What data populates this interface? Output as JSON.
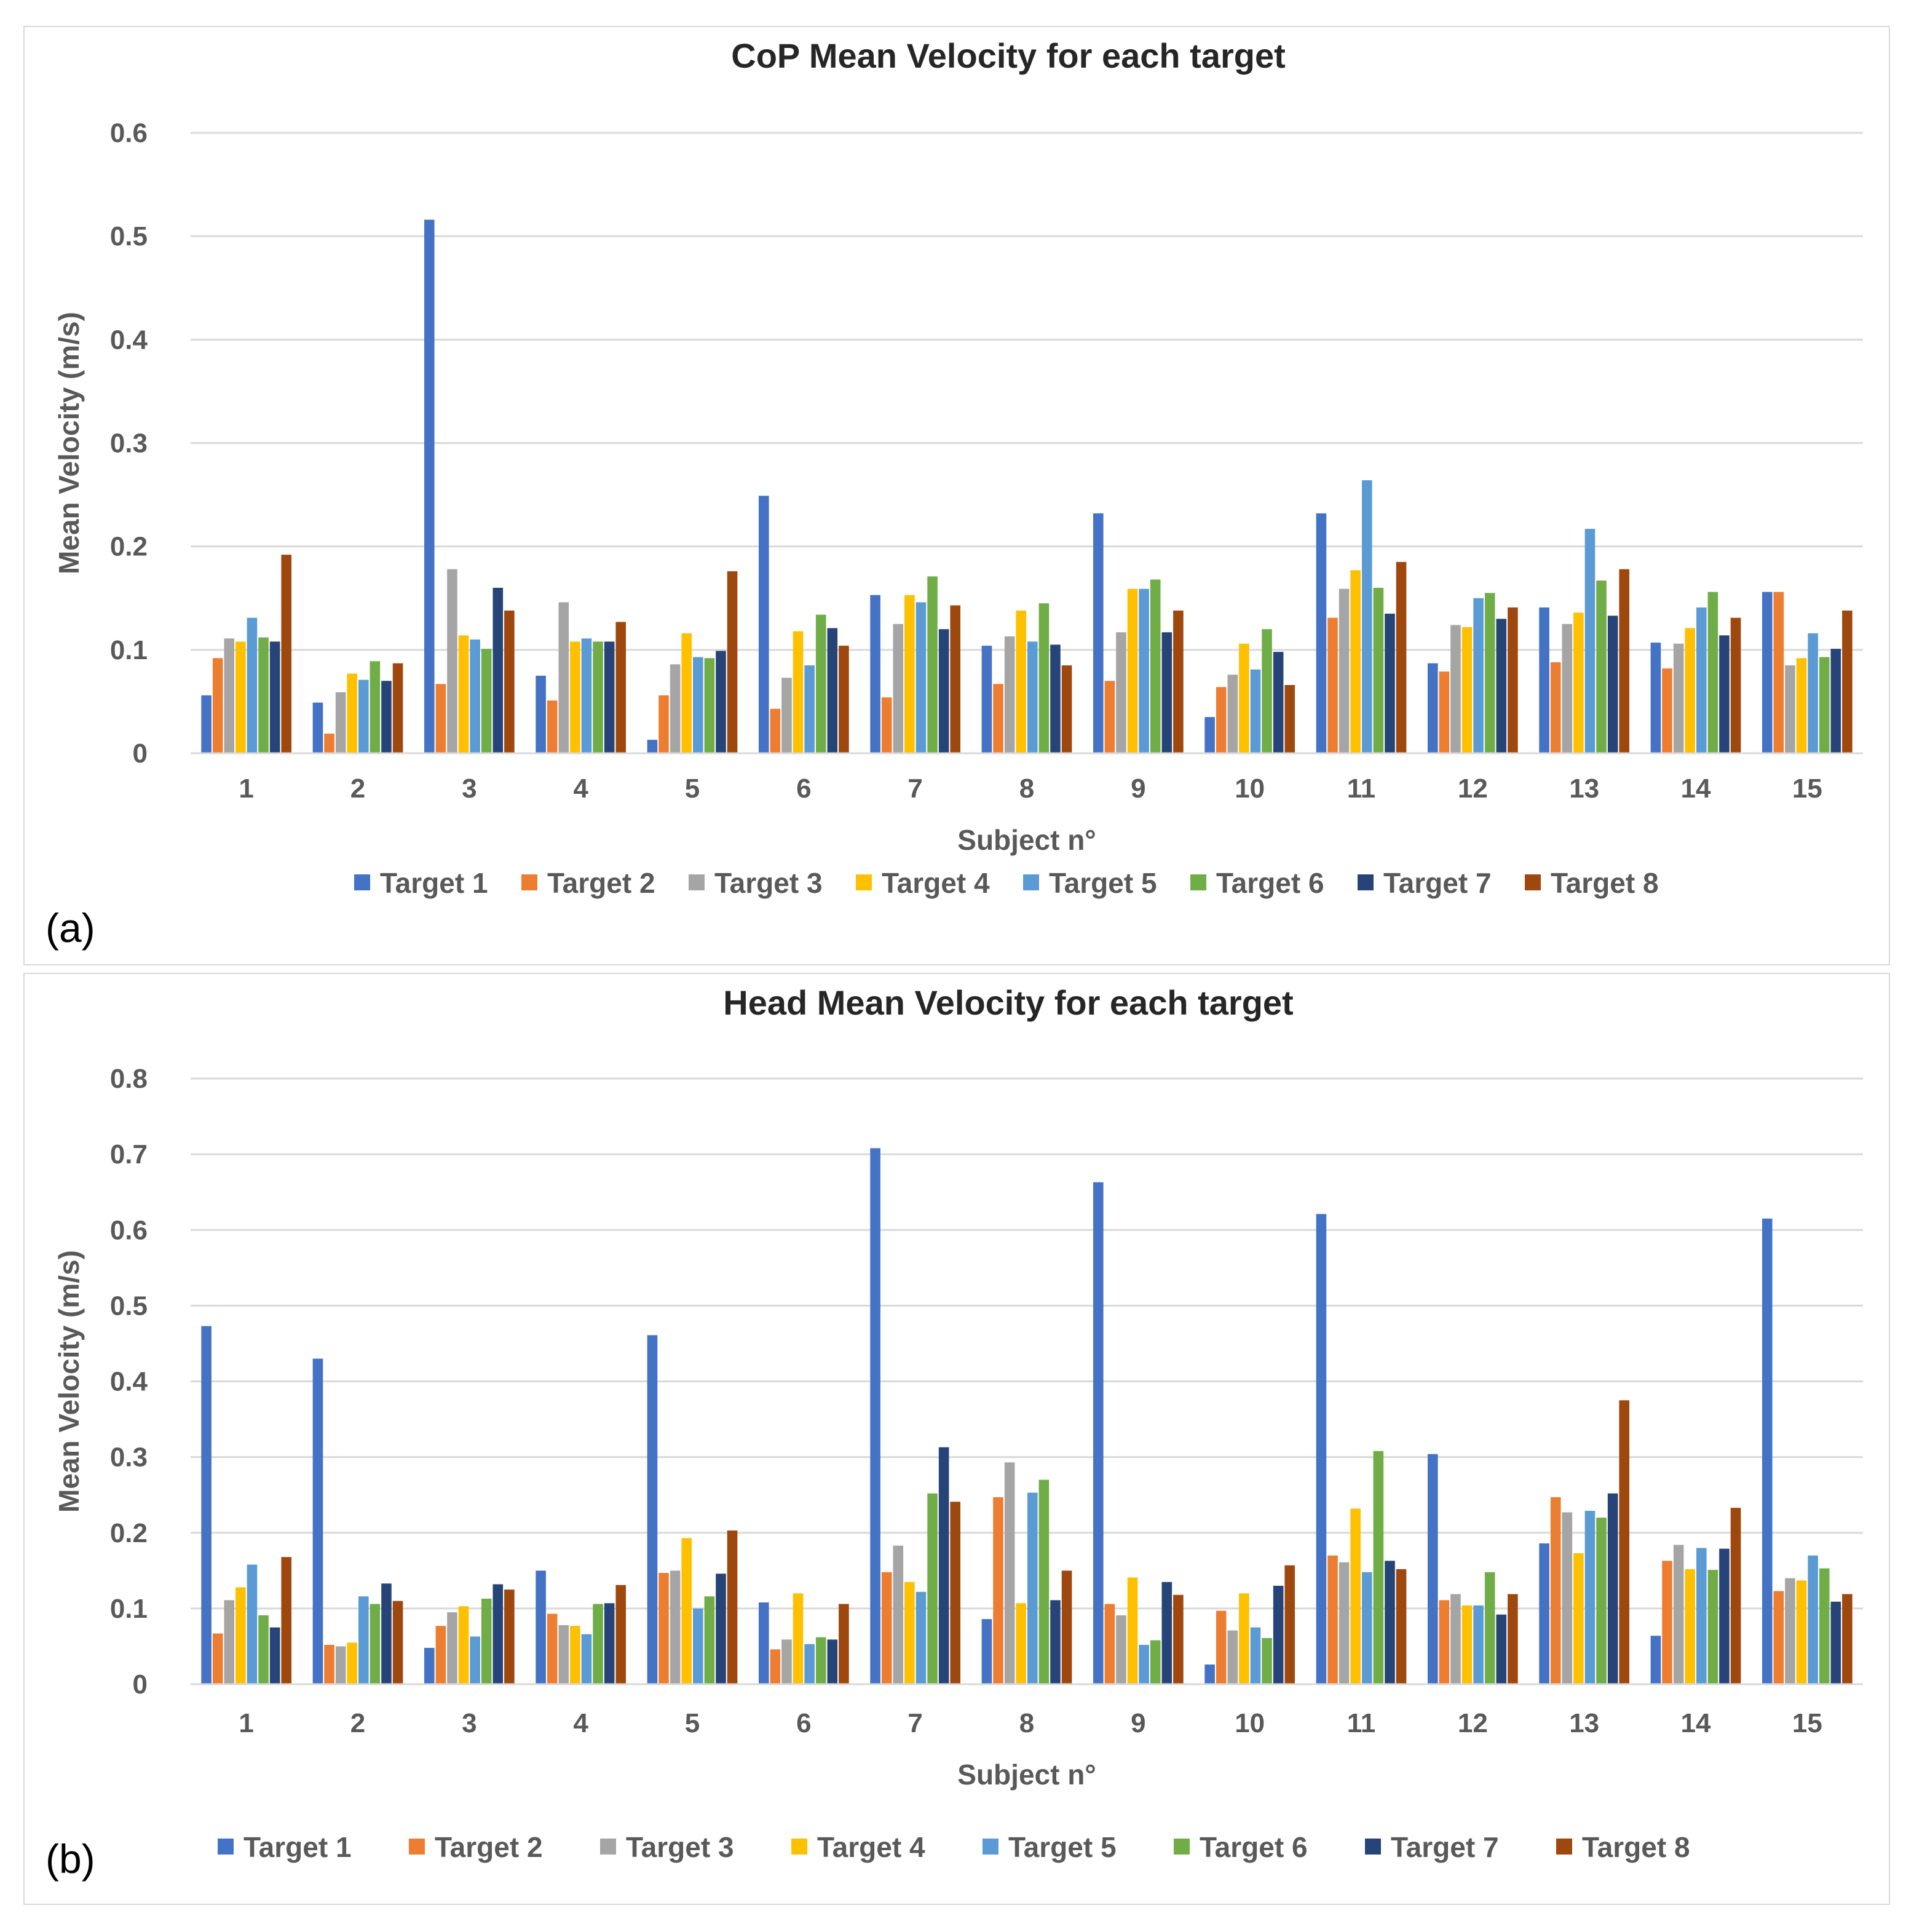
{
  "colors": {
    "series": [
      "#4472C4",
      "#ED7D31",
      "#A5A5A5",
      "#FFC000",
      "#5B9BD5",
      "#70AD47",
      "#264478",
      "#9E480E"
    ],
    "grid": "#d9d9d9",
    "tick_text": "#595959",
    "title_text": "#262626"
  },
  "chart_data": [
    {
      "panel_label": "(a)",
      "type": "bar",
      "title": "CoP Mean Velocity for each target",
      "xlabel": "Subject n°",
      "ylabel": "Mean Velocity (m/s)",
      "ylim": [
        0,
        0.6
      ],
      "yticks": [
        0,
        0.1,
        0.2,
        0.3,
        0.4,
        0.5,
        0.6
      ],
      "ytick_labels": [
        "0",
        "0.1",
        "0.2",
        "0.3",
        "0.4",
        "0.5",
        "0.6"
      ],
      "categories": [
        "1",
        "2",
        "3",
        "4",
        "5",
        "6",
        "7",
        "8",
        "9",
        "10",
        "11",
        "12",
        "13",
        "14",
        "15"
      ],
      "legend_position": "bottom",
      "series": [
        {
          "name": "Target 1",
          "values": [
            0.056,
            0.049,
            0.516,
            0.075,
            0.013,
            0.249,
            0.153,
            0.104,
            0.232,
            0.035,
            0.232,
            0.087,
            0.141,
            0.107,
            0.156
          ]
        },
        {
          "name": "Target 2",
          "values": [
            0.092,
            0.019,
            0.067,
            0.051,
            0.056,
            0.043,
            0.054,
            0.067,
            0.07,
            0.064,
            0.131,
            0.079,
            0.088,
            0.082,
            0.156
          ]
        },
        {
          "name": "Target 3",
          "values": [
            0.111,
            0.059,
            0.178,
            0.146,
            0.086,
            0.073,
            0.125,
            0.113,
            0.117,
            0.076,
            0.159,
            0.124,
            0.125,
            0.106,
            0.085
          ]
        },
        {
          "name": "Target 4",
          "values": [
            0.108,
            0.077,
            0.114,
            0.108,
            0.116,
            0.118,
            0.153,
            0.138,
            0.159,
            0.106,
            0.177,
            0.122,
            0.136,
            0.121,
            0.092
          ]
        },
        {
          "name": "Target 5",
          "values": [
            0.131,
            0.071,
            0.11,
            0.111,
            0.093,
            0.085,
            0.146,
            0.108,
            0.159,
            0.081,
            0.264,
            0.15,
            0.217,
            0.141,
            0.116
          ]
        },
        {
          "name": "Target 6",
          "values": [
            0.112,
            0.089,
            0.101,
            0.108,
            0.092,
            0.134,
            0.171,
            0.145,
            0.168,
            0.12,
            0.16,
            0.155,
            0.167,
            0.156,
            0.093
          ]
        },
        {
          "name": "Target 7",
          "values": [
            0.108,
            0.07,
            0.16,
            0.108,
            0.099,
            0.121,
            0.12,
            0.105,
            0.117,
            0.098,
            0.135,
            0.13,
            0.133,
            0.114,
            0.101
          ]
        },
        {
          "name": "Target 8",
          "values": [
            0.192,
            0.087,
            0.138,
            0.127,
            0.176,
            0.104,
            0.143,
            0.085,
            0.138,
            0.066,
            0.185,
            0.141,
            0.178,
            0.131,
            0.138
          ]
        }
      ]
    },
    {
      "panel_label": "(b)",
      "type": "bar",
      "title": "Head Mean Velocity for each target",
      "xlabel": "Subject n°",
      "ylabel": "Mean Velocity (m/s)",
      "ylim": [
        0,
        0.8
      ],
      "yticks": [
        0,
        0.1,
        0.2,
        0.3,
        0.4,
        0.5,
        0.6,
        0.7,
        0.8
      ],
      "ytick_labels": [
        "0",
        "0.1",
        "0.2",
        "0.3",
        "0.4",
        "0.5",
        "0.6",
        "0.7",
        "0.8"
      ],
      "categories": [
        "1",
        "2",
        "3",
        "4",
        "5",
        "6",
        "7",
        "8",
        "9",
        "10",
        "11",
        "12",
        "13",
        "14",
        "15"
      ],
      "legend_position": "bottom",
      "series": [
        {
          "name": "Target 1",
          "values": [
            0.473,
            0.43,
            0.048,
            0.15,
            0.461,
            0.108,
            0.708,
            0.086,
            0.663,
            0.026,
            0.621,
            0.304,
            0.186,
            0.064,
            0.615
          ]
        },
        {
          "name": "Target 2",
          "values": [
            0.067,
            0.052,
            0.077,
            0.093,
            0.147,
            0.046,
            0.148,
            0.247,
            0.106,
            0.097,
            0.17,
            0.111,
            0.247,
            0.163,
            0.123
          ]
        },
        {
          "name": "Target 3",
          "values": [
            0.111,
            0.05,
            0.095,
            0.078,
            0.15,
            0.059,
            0.183,
            0.293,
            0.091,
            0.071,
            0.161,
            0.119,
            0.227,
            0.184,
            0.14
          ]
        },
        {
          "name": "Target 4",
          "values": [
            0.128,
            0.055,
            0.103,
            0.077,
            0.193,
            0.12,
            0.135,
            0.107,
            0.141,
            0.12,
            0.232,
            0.104,
            0.173,
            0.152,
            0.137
          ]
        },
        {
          "name": "Target 5",
          "values": [
            0.158,
            0.116,
            0.063,
            0.066,
            0.1,
            0.053,
            0.122,
            0.253,
            0.052,
            0.075,
            0.148,
            0.104,
            0.229,
            0.18,
            0.17
          ]
        },
        {
          "name": "Target 6",
          "values": [
            0.091,
            0.106,
            0.113,
            0.106,
            0.116,
            0.062,
            0.252,
            0.27,
            0.058,
            0.061,
            0.308,
            0.148,
            0.22,
            0.151,
            0.153
          ]
        },
        {
          "name": "Target 7",
          "values": [
            0.075,
            0.133,
            0.132,
            0.107,
            0.146,
            0.059,
            0.313,
            0.111,
            0.135,
            0.13,
            0.163,
            0.092,
            0.252,
            0.179,
            0.109
          ]
        },
        {
          "name": "Target 8",
          "values": [
            0.168,
            0.11,
            0.125,
            0.131,
            0.203,
            0.106,
            0.241,
            0.15,
            0.118,
            0.157,
            0.152,
            0.119,
            0.375,
            0.233,
            0.119
          ]
        }
      ]
    }
  ]
}
